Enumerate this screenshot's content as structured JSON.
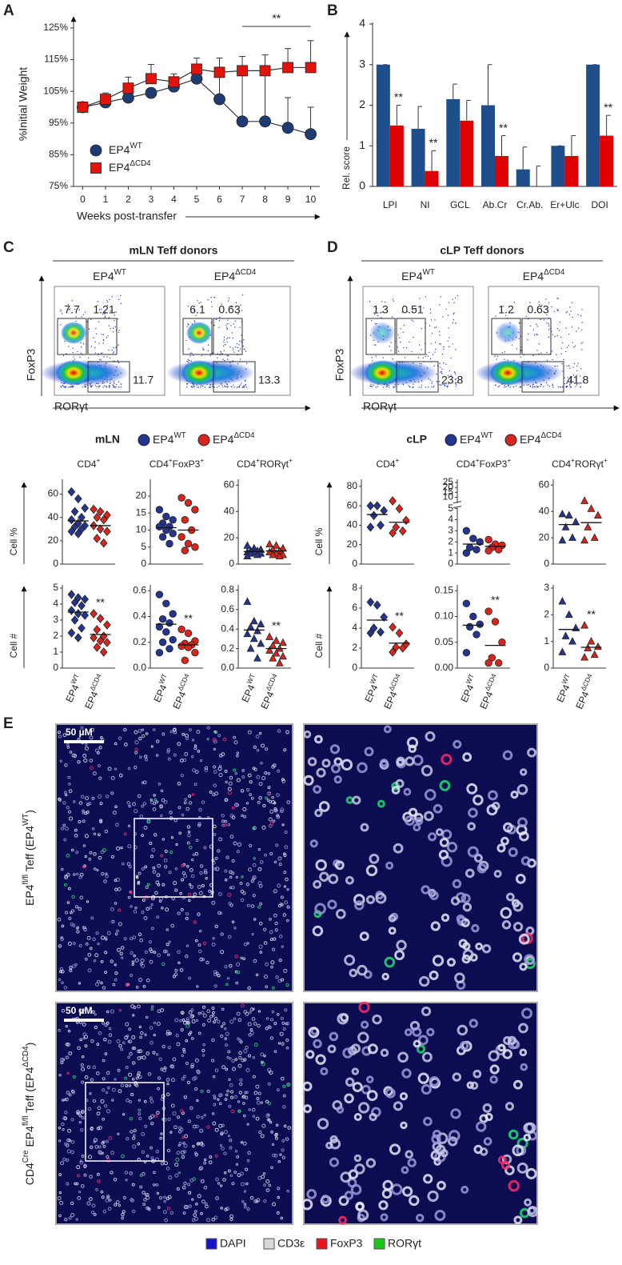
{
  "panel_labels": [
    "A",
    "B",
    "C",
    "D",
    "E"
  ],
  "chart_data": [
    {
      "type": "line",
      "x_label": "Weeks post-transfer",
      "y_label": "%Initial Weight",
      "x": [
        0,
        1,
        2,
        3,
        4,
        5,
        6,
        7,
        8,
        9,
        10
      ],
      "xlim": [
        -0.4,
        10.4
      ],
      "xticks": [
        0,
        1,
        2,
        3,
        4,
        5,
        6,
        7,
        8,
        9,
        10
      ],
      "ylim": [
        75,
        127
      ],
      "yticks": [
        {
          "value": 75,
          "label": "75%"
        },
        {
          "value": 85,
          "label": "85%"
        },
        {
          "value": 95,
          "label": "95%"
        },
        {
          "value": 105,
          "label": "105%"
        },
        {
          "value": 115,
          "label": "115%"
        },
        {
          "value": 125,
          "label": "125%"
        }
      ],
      "series": [
        {
          "name": "EP4",
          "name_sup": "WT",
          "color": "#1f3b73",
          "marker": "circle",
          "values": [
            100,
            101.5,
            103,
            104.5,
            106.5,
            109,
            102.5,
            95.5,
            95.5,
            93.5,
            91.5
          ],
          "errors": [
            0,
            1,
            1,
            1,
            1,
            1.5,
            7.5,
            15,
            14.5,
            9.5,
            8.5
          ]
        },
        {
          "name": "EP4",
          "name_sup": "ΔCD4",
          "color": "#e3120b",
          "marker": "square",
          "values": [
            100,
            102.5,
            106,
            109,
            108,
            112,
            111,
            111.5,
            111.5,
            112.5,
            112.5
          ],
          "errors": [
            0,
            2,
            3.5,
            4.5,
            2.5,
            3.5,
            4.5,
            4.5,
            5,
            6,
            8.5
          ]
        }
      ],
      "annotation": "**",
      "annotation_span": [
        7,
        10
      ]
    },
    {
      "type": "bar",
      "y_label": "Rel. score",
      "categories": [
        "LPI",
        "NI",
        "GCL",
        "Ab.Cr",
        "Cr.Ab.",
        "Er+Ulc",
        "DOI"
      ],
      "ylim": [
        0,
        4
      ],
      "yticks": [
        0,
        1,
        2,
        3,
        4
      ],
      "series": [
        {
          "color": "#1f4e8c",
          "values": [
            3,
            1.42,
            2.15,
            2,
            0.42,
            1,
            3
          ],
          "errors": [
            0,
            0.55,
            0.37,
            1,
            0.55,
            0,
            0
          ]
        },
        {
          "color": "#e00000",
          "values": [
            1.5,
            0.38,
            1.62,
            0.75,
            0,
            0.75,
            1.25
          ],
          "errors": [
            0.5,
            0.5,
            0.5,
            0.5,
            0.5,
            0.5,
            0.5
          ],
          "annotations": [
            "**",
            "**",
            null,
            "**",
            null,
            null,
            "**"
          ]
        }
      ]
    },
    {
      "type": "strip",
      "title": "CD4+",
      "marker": "diamond",
      "ylim": [
        0,
        70
      ],
      "yticks": [
        0,
        20,
        40,
        60
      ],
      "series": [
        {
          "color": "#24358f",
          "values": [
            62,
            56,
            48,
            45,
            40,
            38,
            35,
            33,
            32,
            30,
            28,
            26
          ],
          "mean": 37
        },
        {
          "color": "#d9261c",
          "values": [
            47,
            45,
            42,
            40,
            38,
            33,
            30,
            28,
            22,
            18
          ],
          "mean": 33
        }
      ]
    },
    {
      "type": "strip",
      "title": "CD4+FoxP3+",
      "marker": "circle",
      "ylim": [
        0,
        24
      ],
      "yticks": [
        0,
        5,
        10,
        15,
        20
      ],
      "series": [
        {
          "color": "#24358f",
          "values": [
            16,
            14,
            13,
            12,
            11,
            11,
            10,
            9,
            8,
            6
          ],
          "mean": 10.7
        },
        {
          "color": "#d9261c",
          "values": [
            19.5,
            18,
            16,
            13,
            10,
            8,
            6,
            5,
            4
          ],
          "mean": 10
        }
      ]
    },
    {
      "type": "strip",
      "title": "CD4+RORγt+",
      "marker": "triangle",
      "ylim": [
        0,
        62
      ],
      "yticks": [
        0,
        20,
        40,
        60
      ],
      "series": [
        {
          "color": "#24358f",
          "values": [
            14,
            12,
            11,
            10,
            10,
            9,
            9,
            8,
            8,
            7,
            6
          ],
          "mean": 9.5
        },
        {
          "color": "#d9261c",
          "values": [
            15,
            14,
            12,
            11,
            10,
            9,
            8,
            7,
            7,
            6
          ],
          "mean": 10
        }
      ]
    },
    {
      "type": "strip",
      "title": "CD4+",
      "marker": "diamond",
      "ylim": [
        0,
        84
      ],
      "yticks": [
        0,
        20,
        40,
        60,
        80
      ],
      "series": [
        {
          "color": "#24358f",
          "values": [
            60,
            60,
            55,
            50,
            40,
            38
          ],
          "mean": 51
        },
        {
          "color": "#d9261c",
          "values": [
            65,
            57,
            45,
            38,
            34,
            32
          ],
          "mean": 43
        }
      ]
    },
    {
      "type": "strip",
      "title": "CD4+FoxP3+",
      "marker": "circle",
      "ylim": [
        0,
        25
      ],
      "ybreak": 5,
      "yticks": [
        0,
        1,
        2,
        3,
        4,
        5,
        10,
        15,
        20,
        25
      ],
      "series": [
        {
          "color": "#24358f",
          "values": [
            3,
            2.3,
            2,
            1.5,
            1.3,
            1
          ],
          "mean": 1.8
        },
        {
          "color": "#d9261c",
          "values": [
            2.2,
            1.8,
            1.7,
            1.5,
            1.3,
            1.2
          ],
          "mean": 1.6
        }
      ]
    },
    {
      "type": "strip",
      "title": "CD4+RORγt+",
      "marker": "triangle",
      "ylim": [
        0,
        62
      ],
      "yticks": [
        0,
        20,
        40,
        60
      ],
      "series": [
        {
          "color": "#24358f",
          "values": [
            38,
            37,
            32,
            28,
            20,
            18
          ],
          "mean": 30
        },
        {
          "color": "#d9261c",
          "values": [
            48,
            42,
            37,
            28,
            20,
            18
          ],
          "mean": 31.5
        }
      ]
    },
    {
      "type": "strip",
      "marker": "diamond",
      "ylim": [
        0,
        5
      ],
      "yticks": [
        0,
        1,
        2,
        3,
        4,
        5
      ],
      "categories": [
        "EP4",
        "EP4"
      ],
      "category_sups": [
        "WT",
        "ΔCD4"
      ],
      "series": [
        {
          "color": "#24358f",
          "values": [
            4.6,
            4.4,
            4.3,
            4.1,
            3.9,
            3.6,
            3.4,
            3.3,
            3,
            2.5,
            2.2,
            1.9
          ],
          "mean": 3.5
        },
        {
          "color": "#d9261c",
          "values": [
            3.4,
            3.1,
            2.7,
            2.4,
            2,
            1.9,
            1.7,
            1.6,
            1.3,
            1
          ],
          "mean": 2.1,
          "annotation": "**"
        }
      ]
    },
    {
      "type": "strip",
      "marker": "circle",
      "ylim": [
        0,
        0.62
      ],
      "yticks": [
        {
          "value": 0,
          "label": "0.0"
        },
        0.2,
        0.4,
        0.6
      ],
      "categories": [
        "EP4",
        "EP4"
      ],
      "category_sups": [
        "WT",
        "ΔCD4"
      ],
      "series": [
        {
          "color": "#24358f",
          "values": [
            0.57,
            0.5,
            0.42,
            0.38,
            0.35,
            0.32,
            0.28,
            0.22,
            0.2,
            0.15,
            0.12
          ],
          "mean": 0.34
        },
        {
          "color": "#d9261c",
          "values": [
            0.3,
            0.27,
            0.21,
            0.19,
            0.18,
            0.17,
            0.16,
            0.12,
            0.06
          ],
          "mean": 0.18,
          "annotation": "**"
        }
      ]
    },
    {
      "type": "strip",
      "marker": "triangle",
      "ylim": [
        0,
        0.82
      ],
      "yticks": [
        {
          "value": 0,
          "label": "0.0"
        },
        0.2,
        0.4,
        0.6,
        0.8
      ],
      "categories": [
        "EP4",
        "EP4"
      ],
      "category_sups": [
        "WT",
        "ΔCD4"
      ],
      "series": [
        {
          "color": "#24358f",
          "values": [
            0.68,
            0.48,
            0.45,
            0.42,
            0.38,
            0.35,
            0.3,
            0.25,
            0.2,
            0.1
          ],
          "mean": 0.39
        },
        {
          "color": "#d9261c",
          "values": [
            0.32,
            0.28,
            0.26,
            0.23,
            0.2,
            0.18,
            0.15,
            0.12,
            0.1,
            0.05
          ],
          "mean": 0.2,
          "annotation": "**"
        }
      ]
    },
    {
      "type": "strip",
      "marker": "diamond",
      "ylim": [
        0,
        8
      ],
      "yticks": [
        0,
        2,
        4,
        6,
        8
      ],
      "categories": [
        "EP4",
        "EP4"
      ],
      "category_sups": [
        "WT",
        "ΔCD4"
      ],
      "series": [
        {
          "color": "#24358f",
          "values": [
            6.6,
            6.3,
            5.1,
            4,
            3.6,
            3.5
          ],
          "mean": 4.8
        },
        {
          "color": "#d9261c",
          "values": [
            4.1,
            3.5,
            2.4,
            2.1,
            2,
            1.6
          ],
          "mean": 2.5,
          "annotation": "**"
        }
      ]
    },
    {
      "type": "strip",
      "marker": "circle",
      "ylim": [
        0,
        0.155
      ],
      "yticks": [
        {
          "value": 0,
          "label": "0.00"
        },
        0.05,
        {
          "value": 0.1,
          "label": "0.10"
        },
        0.15
      ],
      "categories": [
        "EP4",
        "EP4"
      ],
      "category_sups": [
        "WT",
        "ΔCD4"
      ],
      "series": [
        {
          "color": "#24358f",
          "values": [
            0.125,
            0.1,
            0.085,
            0.08,
            0.065,
            0.03
          ],
          "mean": 0.083
        },
        {
          "color": "#d9261c",
          "values": [
            0.11,
            0.09,
            0.05,
            0.02,
            0.01,
            0.01
          ],
          "mean": 0.044,
          "annotation": "**"
        }
      ]
    },
    {
      "type": "strip",
      "marker": "triangle",
      "ylim": [
        0,
        3
      ],
      "yticks": [
        0,
        1,
        2,
        3
      ],
      "categories": [
        "EP4",
        "EP4"
      ],
      "category_sups": [
        "WT",
        "ΔCD4"
      ],
      "series": [
        {
          "color": "#24358f",
          "values": [
            2.5,
            2,
            1.5,
            1.2,
            1,
            0.6
          ],
          "mean": 1.45
        },
        {
          "color": "#d9261c",
          "values": [
            1.6,
            1,
            0.8,
            0.75,
            0.5,
            0.4
          ],
          "mean": 0.78,
          "annotation": "**"
        }
      ]
    }
  ],
  "strip_rows": [
    {
      "y_label": "Cell %"
    },
    {
      "y_label": "Cell #"
    }
  ],
  "groups": [
    {
      "name": "mLN",
      "legend": [
        {
          "name": "EP4",
          "sup": "WT",
          "color": "#24358f"
        },
        {
          "name": "EP4",
          "sup": "ΔCD4",
          "color": "#d9261c"
        }
      ]
    },
    {
      "name": "cLP",
      "legend": [
        {
          "name": "EP4",
          "sup": "WT",
          "color": "#24358f"
        },
        {
          "name": "EP4",
          "sup": "ΔCD4",
          "color": "#d9261c"
        }
      ]
    }
  ],
  "flow": {
    "x_label": "RORγt",
    "y_label": "FoxP3",
    "panels": [
      {
        "title": "mLN Teff donors",
        "columns": [
          {
            "name": "EP4",
            "sup": "WT",
            "gates": [
              7.7,
              1.21,
              11.7
            ]
          },
          {
            "name": "EP4",
            "sup": "ΔCD4",
            "gates": [
              6.1,
              0.63,
              13.3
            ]
          }
        ]
      },
      {
        "title": "cLP Teff donors",
        "columns": [
          {
            "name": "EP4",
            "sup": "WT",
            "gates": [
              1.3,
              0.51,
              23.8
            ]
          },
          {
            "name": "EP4",
            "sup": "ΔCD4",
            "gates": [
              1.2,
              0.63,
              41.8
            ]
          }
        ]
      }
    ]
  },
  "images": {
    "scale_bar": "50 µM",
    "rows": [
      {
        "label": [
          {
            "text": "EP4"
          },
          {
            "text": "fl/fl",
            "sup": true
          },
          {
            "text": " Teff  (EP4"
          },
          {
            "text": "WT",
            "sup": true
          },
          {
            "text": ")"
          }
        ]
      },
      {
        "label": [
          {
            "text": "CD4"
          },
          {
            "text": "Cre",
            "sup": true
          },
          {
            "text": " EP4"
          },
          {
            "text": "fl/fl",
            "sup": true
          },
          {
            "text": " Teff  (EP4"
          },
          {
            "text": "ΔCD4",
            "sup": true
          },
          {
            "text": ")"
          }
        ]
      }
    ],
    "legend": [
      {
        "name": "DAPI",
        "color": "#1414c8"
      },
      {
        "name": "CD3ε",
        "color": "#d8d8d8"
      },
      {
        "name": "FoxP3",
        "color": "#e8141e"
      },
      {
        "name": "RORγt",
        "color": "#18c818"
      }
    ]
  }
}
